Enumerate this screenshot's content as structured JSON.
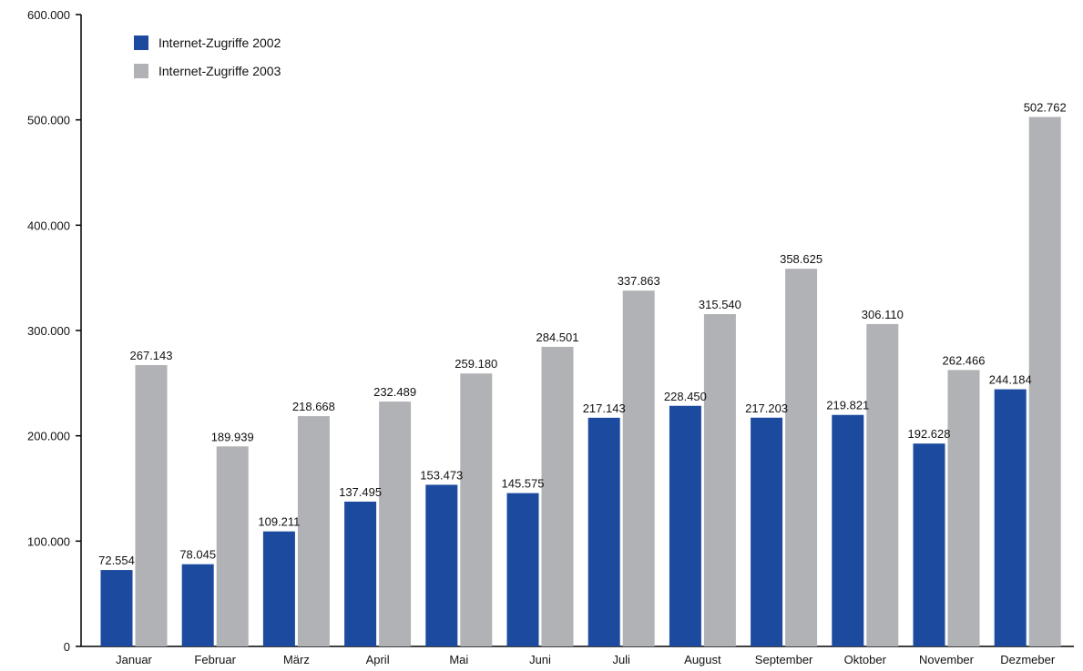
{
  "chart_data": {
    "type": "bar",
    "categories": [
      "Januar",
      "Februar",
      "März",
      "April",
      "Mai",
      "Juni",
      "Juli",
      "August",
      "September",
      "Oktober",
      "November",
      "Dezmeber"
    ],
    "series": [
      {
        "name": "Internet-Zugriffe 2002",
        "color": "#1b4a9e",
        "values": [
          72554,
          78045,
          109211,
          137495,
          153473,
          145575,
          217143,
          228450,
          217203,
          219821,
          192628,
          244184
        ],
        "labels": [
          "72.554",
          "78.045",
          "109.211",
          "137.495",
          "153.473",
          "145.575",
          "217.143",
          "228.450",
          "217.203",
          "219.821",
          "192.628",
          "244.184"
        ]
      },
      {
        "name": "Internet-Zugriffe 2003",
        "color": "#b1b2b6",
        "values": [
          267143,
          189939,
          218668,
          232489,
          259180,
          284501,
          337863,
          315540,
          358625,
          306110,
          262466,
          502762
        ],
        "labels": [
          "267.143",
          "189.939",
          "218.668",
          "232.489",
          "259.180",
          "284.501",
          "337.863",
          "315.540",
          "358.625",
          "306.110",
          "262.466",
          "502.762"
        ]
      }
    ],
    "ylim": [
      0,
      600000
    ],
    "yticks": [
      0,
      100000,
      200000,
      300000,
      400000,
      500000,
      600000
    ],
    "ytick_labels": [
      "0",
      "100.000",
      "200.000",
      "300.000",
      "400.000",
      "500.000",
      "600.000"
    ],
    "title": "",
    "xlabel": "",
    "ylabel": "",
    "grid": false,
    "legend_position": "top-left"
  }
}
